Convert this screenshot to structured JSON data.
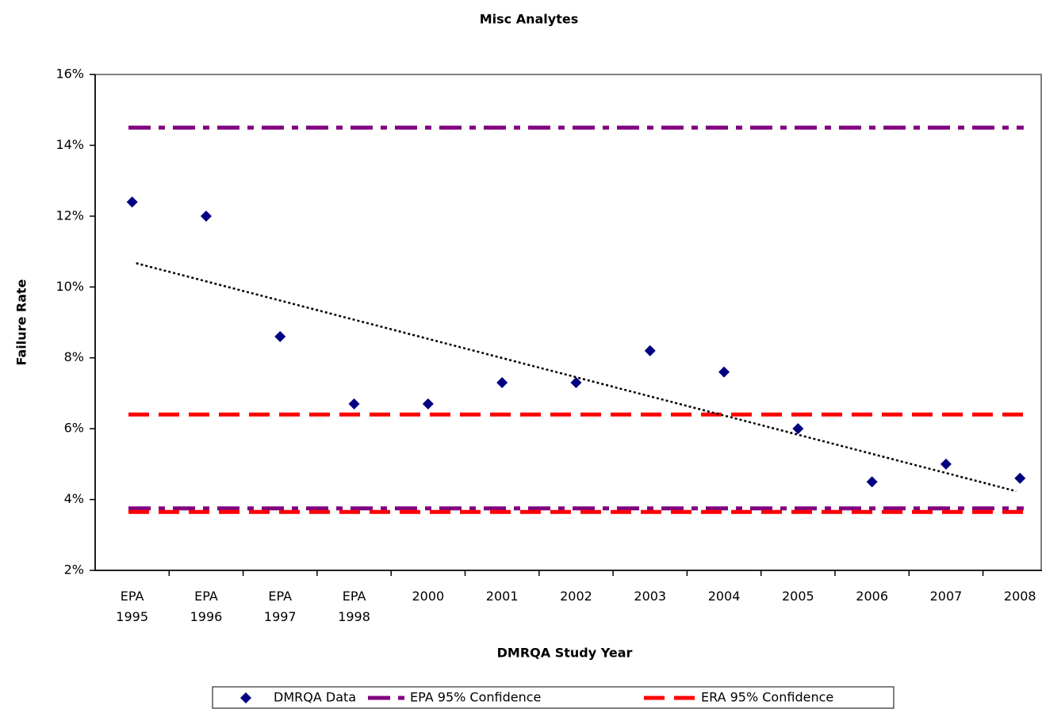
{
  "chart_data": {
    "type": "scatter",
    "title": "Misc Analytes",
    "x_label": "DMRQA Study Year",
    "y_label": "Failure Rate",
    "categories": [
      "EPA 1995",
      "EPA 1996",
      "EPA 1997",
      "EPA 1998",
      "2000",
      "2001",
      "2002",
      "2003",
      "2004",
      "2005",
      "2006",
      "2007",
      "2008"
    ],
    "series": [
      {
        "name": "DMRQA Data",
        "color": "#000080",
        "values": [
          12.4,
          12.0,
          8.6,
          6.7,
          6.7,
          7.3,
          7.3,
          8.2,
          7.6,
          6.0,
          4.5,
          5.0,
          4.6
        ]
      }
    ],
    "reference_lines": [
      {
        "name": "EPA 95% Confidence",
        "color": "#800080",
        "style": "dash-dot",
        "values": [
          14.5,
          3.75
        ]
      },
      {
        "name": "ERA 95% Confidence",
        "color": "#ff0000",
        "style": "dash",
        "values": [
          6.4,
          3.65
        ]
      }
    ],
    "trendline": "linear",
    "ylim": [
      2,
      16
    ],
    "yticks": [
      {
        "value": 2,
        "label": "2%"
      },
      {
        "value": 4,
        "label": "4%"
      },
      {
        "value": 6,
        "label": "6%"
      },
      {
        "value": 8,
        "label": "8%"
      },
      {
        "value": 10,
        "label": "10%"
      },
      {
        "value": 12,
        "label": "12%"
      },
      {
        "value": 14,
        "label": "14%"
      },
      {
        "value": 16,
        "label": "16%"
      }
    ],
    "legend": "bottom"
  }
}
